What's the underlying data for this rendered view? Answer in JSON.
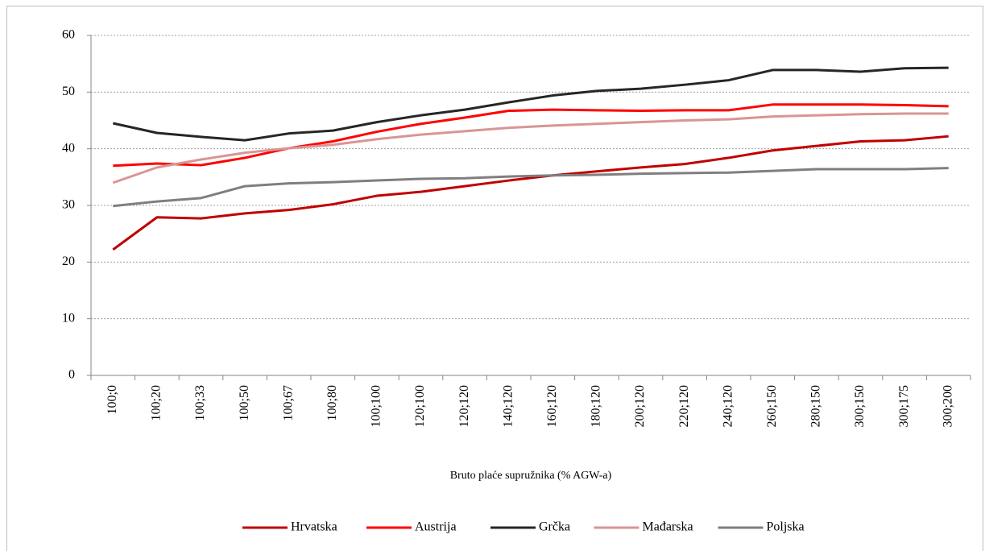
{
  "chart_data": {
    "type": "line",
    "x_label": "Bruto plaće supružnika (% AGW-a)",
    "categories": [
      "100;0",
      "100;20",
      "100;33",
      "100;50",
      "100;67",
      "100;80",
      "100;100",
      "120;100",
      "120;120",
      "140;120",
      "160;120",
      "180;120",
      "200;120",
      "220;120",
      "240;120",
      "260;150",
      "280;150",
      "300;150",
      "300;175",
      "300;200"
    ],
    "series": [
      {
        "name": "Hrvatska",
        "color": "#c00000",
        "values": [
          22.2,
          27.9,
          27.7,
          28.6,
          29.2,
          30.2,
          31.7,
          32.4,
          33.4,
          34.4,
          35.3,
          36.0,
          36.7,
          37.3,
          38.4,
          39.7,
          40.5,
          41.3,
          41.5,
          42.2
        ]
      },
      {
        "name": "Austrija",
        "color": "#ff0000",
        "values": [
          37.0,
          37.4,
          37.1,
          38.4,
          40.1,
          41.3,
          43.0,
          44.4,
          45.5,
          46.7,
          46.9,
          46.8,
          46.7,
          46.8,
          46.8,
          47.8,
          47.8,
          47.8,
          47.7,
          47.5
        ]
      },
      {
        "name": "Grčka",
        "color": "#262626",
        "values": [
          44.5,
          42.8,
          42.1,
          41.5,
          42.7,
          43.2,
          44.7,
          45.9,
          46.9,
          48.2,
          49.4,
          50.2,
          50.6,
          51.3,
          52.1,
          53.9,
          53.9,
          53.6,
          54.2,
          54.3
        ]
      },
      {
        "name": "Mađarska",
        "color": "#d99594",
        "values": [
          34.0,
          36.7,
          38.1,
          39.3,
          40.1,
          40.7,
          41.7,
          42.5,
          43.1,
          43.7,
          44.1,
          44.4,
          44.7,
          45.0,
          45.2,
          45.7,
          45.9,
          46.1,
          46.2,
          46.2
        ]
      },
      {
        "name": "Poljska",
        "color": "#7f7f7f",
        "values": [
          29.9,
          30.7,
          31.3,
          33.4,
          33.9,
          34.1,
          34.4,
          34.7,
          34.8,
          35.1,
          35.3,
          35.4,
          35.6,
          35.7,
          35.8,
          36.1,
          36.4,
          36.4,
          36.4,
          36.6
        ]
      }
    ],
    "ylim": [
      0,
      60
    ],
    "yticks": [
      0,
      10,
      20,
      30,
      40,
      50,
      60
    ],
    "grid": true,
    "legend": "bottom"
  }
}
